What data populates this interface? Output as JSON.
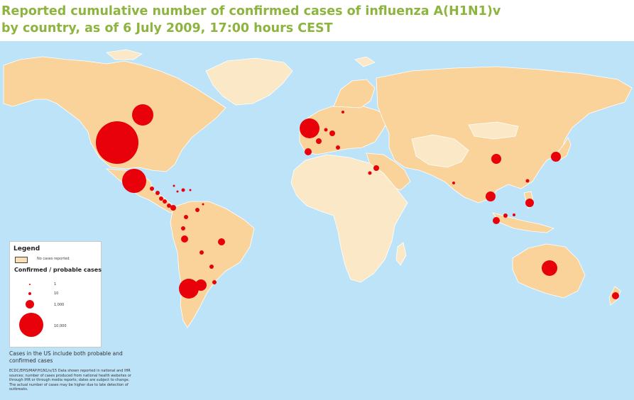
{
  "title": {
    "line1": "Reported cumulative number of confirmed cases of influenza A(H1N1)v",
    "line2": "by country, as of 6 July 2009, 17:00 hours CEST"
  },
  "colors": {
    "ocean": "#bde3f8",
    "confirmed_country": "#f9d39a",
    "no_cases_country": "#fbe8c6",
    "border": "#ffffff",
    "case_marker": "#e8000b",
    "title": "#8db43f"
  },
  "legend": {
    "title": "Legend",
    "no_cases_label": "No cases reported",
    "marker_heading": "Confirmed / probable cases",
    "marker_scale": [
      {
        "value": "1"
      },
      {
        "value": "10"
      },
      {
        "value": "1,000"
      },
      {
        "value": "10,000"
      }
    ]
  },
  "notes": {
    "us_note": "Cases in the US include both probable and confirmed cases",
    "source": "ECDC/EPIS/MAP/H1N1/v/15 Data shown reported in national and IHR sources; number of cases produced from national health websites or through IHR or through media reports; dates are subject to change. The actual number of cases may be higher due to late detection of outbreaks."
  },
  "case_markers": [
    {
      "country": "United States",
      "cases": 33902
    },
    {
      "country": "Canada",
      "cases": 7983
    },
    {
      "country": "Mexico",
      "cases": 10262
    },
    {
      "country": "Guatemala",
      "cases": 100
    },
    {
      "country": "Honduras",
      "cases": 100
    },
    {
      "country": "El Salvador",
      "cases": 100
    },
    {
      "country": "Nicaragua",
      "cases": 100
    },
    {
      "country": "Costa Rica",
      "cases": 100
    },
    {
      "country": "Panama",
      "cases": 300
    },
    {
      "country": "Cuba",
      "cases": 10
    },
    {
      "country": "Dominican Republic",
      "cases": 100
    },
    {
      "country": "Jamaica",
      "cases": 10
    },
    {
      "country": "Puerto Rico",
      "cases": 10
    },
    {
      "country": "Trinidad and Tobago",
      "cases": 10
    },
    {
      "country": "Venezuela",
      "cases": 100
    },
    {
      "country": "Colombia",
      "cases": 100
    },
    {
      "country": "Ecuador",
      "cases": 100
    },
    {
      "country": "Peru",
      "cases": 900
    },
    {
      "country": "Brazil",
      "cases": 900
    },
    {
      "country": "Bolivia",
      "cases": 100
    },
    {
      "country": "Paraguay",
      "cases": 100
    },
    {
      "country": "Uruguay",
      "cases": 100
    },
    {
      "country": "Chile",
      "cases": 7000
    },
    {
      "country": "Argentina",
      "cases": 2500
    },
    {
      "country": "United Kingdom",
      "cases": 7450
    },
    {
      "country": "Spain",
      "cases": 800
    },
    {
      "country": "France",
      "cases": 300
    },
    {
      "country": "Germany",
      "cases": 500
    },
    {
      "country": "Netherlands",
      "cases": 100
    },
    {
      "country": "Italy",
      "cases": 100
    },
    {
      "country": "Sweden",
      "cases": 10
    },
    {
      "country": "Israel",
      "cases": 300
    },
    {
      "country": "Egypt",
      "cases": 100
    },
    {
      "country": "China",
      "cases": 1500
    },
    {
      "country": "Japan",
      "cases": 1500
    },
    {
      "country": "Taiwan",
      "cases": 100
    },
    {
      "country": "Thailand",
      "cases": 1500
    },
    {
      "country": "Philippines",
      "cases": 1500
    },
    {
      "country": "Singapore",
      "cases": 600
    },
    {
      "country": "Malaysia",
      "cases": 100
    },
    {
      "country": "Indonesia",
      "cases": 10
    },
    {
      "country": "India",
      "cases": 100
    },
    {
      "country": "Australia",
      "cases": 5000
    },
    {
      "country": "New Zealand",
      "cases": 900
    }
  ]
}
